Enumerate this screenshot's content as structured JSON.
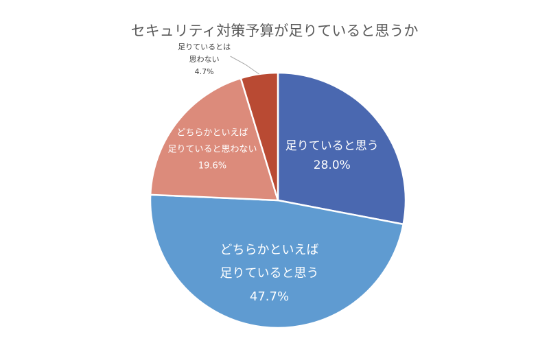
{
  "chart_data": {
    "type": "pie",
    "title": "セキュリティ対策予算が足りていると思うか",
    "start_angle_deg": 0,
    "direction": "clockwise",
    "slices": [
      {
        "label_lines": [
          "足りていると思う"
        ],
        "value": 28.0,
        "value_label": "28.0%",
        "color": "#4a68b0",
        "label_position": "inside"
      },
      {
        "label_lines": [
          "どちらかといえば",
          "足りていると思う"
        ],
        "value": 47.7,
        "value_label": "47.7%",
        "color": "#5f9bd1",
        "label_position": "inside"
      },
      {
        "label_lines": [
          "どちらかといえば",
          "足りていると思わない"
        ],
        "value": 19.6,
        "value_label": "19.6%",
        "color": "#dc8b7b",
        "label_position": "inside"
      },
      {
        "label_lines": [
          "足りているとは",
          "思わない"
        ],
        "value": 4.7,
        "value_label": "4.7%",
        "color": "#b94a33",
        "label_position": "outside-with-leader"
      }
    ],
    "legend": "none"
  }
}
